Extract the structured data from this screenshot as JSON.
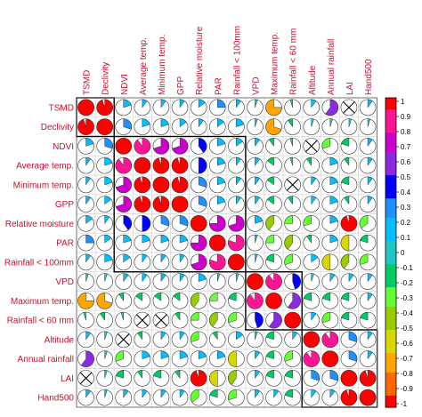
{
  "chart_data": {
    "type": "heatmap",
    "style": "pie-correlogram",
    "variables": [
      "TSMD",
      "Declivity",
      "NDVI",
      "Average temp.",
      "Minimum temp.",
      "GPP",
      "Relative moisture",
      "PAR",
      "Rainfall < 100mm",
      "VPD",
      "Maximum temp.",
      "Rainfall < 60 mm",
      "Altitude",
      "Annual rainfall",
      "LAI",
      "Hand500"
    ],
    "matrix": [
      [
        1.0,
        0.95,
        0.2,
        0.1,
        0.1,
        0.1,
        0.15,
        0.25,
        0.1,
        0.05,
        -0.75,
        -0.05,
        0.1,
        0.6,
        null,
        0.1
      ],
      [
        0.95,
        1.0,
        0.3,
        0.2,
        0.2,
        0.15,
        0.1,
        0.15,
        0.2,
        0.05,
        -0.7,
        -0.1,
        0.05,
        0.05,
        0.05,
        0.05
      ],
      [
        0.2,
        0.3,
        1.0,
        0.9,
        0.7,
        0.7,
        0.4,
        0.2,
        0.15,
        0.1,
        -0.1,
        -0.05,
        null,
        -0.3,
        -0.2,
        0.1
      ],
      [
        0.1,
        0.2,
        0.9,
        1.0,
        0.95,
        0.95,
        0.5,
        0.2,
        0.1,
        0.1,
        -0.15,
        -0.05,
        -0.1,
        0.2,
        -0.1,
        0.1
      ],
      [
        0.1,
        0.2,
        0.7,
        0.95,
        1.0,
        0.95,
        0.3,
        0.2,
        0.1,
        0.1,
        -0.15,
        null,
        0.1,
        0.2,
        -0.2,
        0.1
      ],
      [
        0.1,
        0.15,
        0.7,
        0.95,
        0.95,
        1.0,
        0.3,
        0.2,
        0.1,
        0.1,
        -0.15,
        -0.1,
        0.1,
        0.2,
        -0.1,
        0.1
      ],
      [
        0.15,
        0.1,
        0.4,
        0.5,
        0.3,
        0.3,
        1.0,
        0.75,
        0.7,
        0.2,
        -0.4,
        -0.25,
        -0.3,
        0.2,
        0.95,
        -0.35
      ],
      [
        0.25,
        0.15,
        0.2,
        0.2,
        0.2,
        0.2,
        0.75,
        1.0,
        0.8,
        0.05,
        -0.25,
        -0.4,
        -0.1,
        0.2,
        -0.5,
        -0.2
      ],
      [
        0.1,
        0.2,
        0.15,
        0.1,
        0.1,
        0.1,
        0.7,
        0.8,
        1.0,
        0.05,
        -0.2,
        -0.3,
        0.15,
        -0.5,
        -0.4,
        -0.3
      ],
      [
        0.05,
        0.05,
        0.1,
        0.1,
        0.1,
        0.1,
        0.2,
        0.05,
        0.05,
        1.0,
        0.9,
        0.45,
        0.05,
        0.1,
        0.1,
        0.1
      ],
      [
        -0.75,
        -0.7,
        -0.1,
        -0.15,
        -0.15,
        -0.15,
        -0.4,
        -0.25,
        -0.2,
        0.9,
        1.0,
        0.6,
        -0.2,
        -0.2,
        -0.2,
        0.1
      ],
      [
        -0.05,
        -0.1,
        -0.05,
        null,
        null,
        -0.1,
        -0.25,
        -0.4,
        -0.3,
        0.45,
        0.6,
        1.0,
        0.1,
        -0.3,
        -0.2,
        -0.2
      ],
      [
        0.1,
        0.05,
        null,
        -0.1,
        0.1,
        0.1,
        -0.3,
        -0.1,
        0.15,
        0.05,
        -0.2,
        0.1,
        1.0,
        0.9,
        0.3,
        0.1
      ],
      [
        0.6,
        0.05,
        -0.3,
        0.2,
        0.2,
        0.2,
        0.2,
        0.2,
        -0.5,
        0.1,
        -0.2,
        -0.3,
        0.9,
        1.0,
        0.3,
        0.1
      ],
      [
        null,
        0.05,
        -0.2,
        -0.1,
        -0.2,
        -0.1,
        0.95,
        -0.5,
        -0.4,
        0.1,
        -0.2,
        -0.2,
        0.3,
        0.3,
        1.0,
        0.95
      ],
      [
        0.1,
        0.05,
        0.1,
        0.1,
        0.1,
        0.1,
        -0.35,
        -0.2,
        -0.3,
        0.1,
        0.1,
        -0.2,
        0.1,
        0.1,
        0.95,
        1.0
      ]
    ],
    "clusters": [
      [
        0,
        1
      ],
      [
        2,
        8
      ],
      [
        9,
        11
      ],
      [
        12,
        15
      ]
    ],
    "legend": {
      "position": "right",
      "ticks": [
        "1",
        "0.9",
        "0.8",
        "0.7",
        "0.6",
        "0.5",
        "0.4",
        "0.3",
        "0.2",
        "0.1",
        "0",
        "-0.1",
        "-0.2",
        "-0.3",
        "-0.4",
        "-0.5",
        "-0.6",
        "-0.7",
        "-0.8",
        "-0.9",
        "-1"
      ],
      "range": [
        -1,
        1
      ]
    },
    "colors": [
      "#FF0000",
      "#FF1493",
      "#CC00CC",
      "#8A2BE2",
      "#0000FF",
      "#1E90FF",
      "#00BFFF",
      "#20C5C5",
      "#00CC66",
      "#66FF33",
      "#99CC00",
      "#D8D800",
      "#FFA500",
      "#FF6600",
      "#FF0000"
    ],
    "grid": false
  }
}
